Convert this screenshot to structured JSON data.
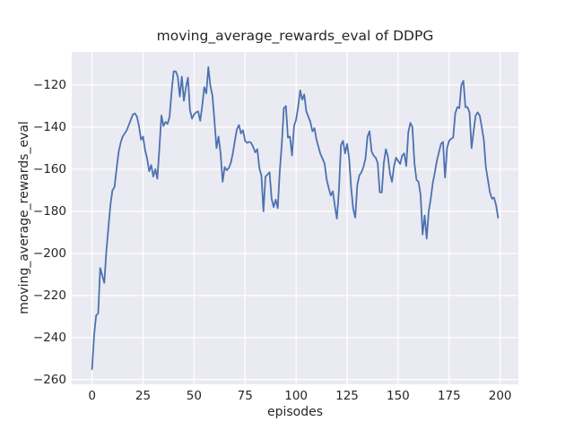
{
  "chart": {
    "title": "moving_average_rewards_eval of DDPG",
    "xlabel": "episodes",
    "ylabel": "moving_average_rewards_eval"
  },
  "chart_data": {
    "type": "line",
    "title": "moving_average_rewards_eval of DDPG",
    "xlabel": "episodes",
    "ylabel": "moving_average_rewards_eval",
    "grid": true,
    "legend_position": "none",
    "line_color": "#4C72B0",
    "plot_bg_color": "#EAEAF2",
    "grid_color": "#FFFFFF",
    "text_color": "#262626",
    "x_min": 0,
    "x_step": 1,
    "x_ticks": [
      0,
      25,
      50,
      75,
      100,
      125,
      150,
      175,
      200
    ],
    "y_ticks": [
      -120,
      -140,
      -160,
      -180,
      -200,
      -220,
      -240,
      -260
    ],
    "xlim": [
      -9.95,
      208.95
    ],
    "ylim": [
      -262.2,
      -104.3
    ],
    "values": [
      -255,
      -239,
      -229.5,
      -228.5,
      -207,
      -210.5,
      -214,
      -199,
      -188,
      -177,
      -170,
      -168.5,
      -160,
      -152,
      -147.5,
      -144.5,
      -143,
      -141.5,
      -139,
      -136.5,
      -134,
      -133.5,
      -135,
      -139.5,
      -146,
      -144.5,
      -151,
      -155,
      -161,
      -158,
      -163.5,
      -160,
      -164.5,
      -150,
      -134.5,
      -139.5,
      -137.5,
      -138.5,
      -135,
      -123,
      -113.5,
      -113.5,
      -116,
      -125.5,
      -116,
      -127.5,
      -121,
      -116.5,
      -132,
      -136,
      -134,
      -133,
      -132.5,
      -137,
      -130,
      -121,
      -124,
      -111.5,
      -120.5,
      -125,
      -137,
      -150,
      -144.5,
      -152.5,
      -166,
      -159,
      -160.5,
      -159.5,
      -157,
      -152.5,
      -146.5,
      -141,
      -139,
      -143,
      -141.5,
      -146.5,
      -147.5,
      -147,
      -147.5,
      -149.5,
      -152,
      -150.5,
      -159.5,
      -163,
      -180,
      -163.5,
      -162.5,
      -161.5,
      -174,
      -178,
      -174.5,
      -178.5,
      -161,
      -148,
      -131,
      -130,
      -145,
      -144.5,
      -153.5,
      -139.5,
      -136.5,
      -130.5,
      -122.5,
      -127,
      -124.5,
      -132.5,
      -135,
      -137.5,
      -142,
      -140.5,
      -146,
      -149.5,
      -153,
      -155,
      -157.5,
      -165,
      -169,
      -172.5,
      -170.5,
      -177.5,
      -183.5,
      -170,
      -148.5,
      -146.5,
      -152.5,
      -148,
      -155,
      -169,
      -179,
      -183,
      -167.5,
      -163,
      -161.5,
      -159,
      -155,
      -144.5,
      -142,
      -151.5,
      -153.5,
      -154.5,
      -157,
      -171,
      -171,
      -157,
      -150.5,
      -154,
      -162,
      -166,
      -158.5,
      -154.5,
      -156,
      -157.5,
      -153.5,
      -152.5,
      -158.5,
      -142.5,
      -138,
      -140,
      -157,
      -165,
      -166,
      -172,
      -191,
      -182,
      -193,
      -180,
      -174,
      -166.5,
      -161.5,
      -156,
      -152,
      -148,
      -147,
      -164,
      -150,
      -146.5,
      -145.5,
      -145,
      -133.5,
      -130.5,
      -131,
      -120,
      -118,
      -130.5,
      -130.5,
      -133,
      -150,
      -142,
      -134.5,
      -133,
      -134.5,
      -140,
      -146,
      -159,
      -165,
      -171,
      -174,
      -173.5,
      -177,
      -183
    ]
  }
}
